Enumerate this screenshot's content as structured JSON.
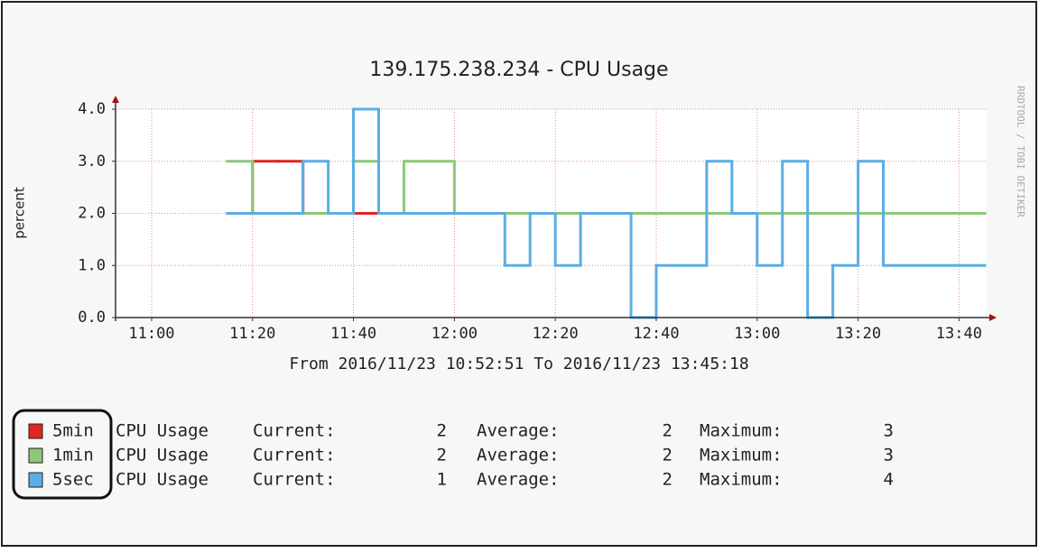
{
  "chart_data": {
    "type": "step",
    "title": "139.175.238.234 - CPU Usage",
    "y_label": "percent",
    "x_label": "From 2016/11/23 10:52:51 To 2016/11/23 13:45:18",
    "watermark": "RRDTOOL / TOBI OETIKER",
    "xlim": [
      "10:52:51",
      "13:45:18"
    ],
    "xticks": [
      "11:00",
      "11:20",
      "11:40",
      "12:00",
      "12:20",
      "12:40",
      "13:00",
      "13:20",
      "13:40"
    ],
    "ylim": [
      0,
      4
    ],
    "yticks": [
      {
        "value": 0,
        "label": "0.0"
      },
      {
        "value": 1,
        "label": "1.0"
      },
      {
        "value": 2,
        "label": "2.0"
      },
      {
        "value": 3,
        "label": "3.0"
      },
      {
        "value": 4,
        "label": "4.0"
      }
    ],
    "grid": true,
    "x": [
      "11:15",
      "11:20",
      "11:25",
      "11:30",
      "11:35",
      "11:40",
      "11:45",
      "11:50",
      "11:55",
      "12:00",
      "12:05",
      "12:10",
      "12:15",
      "12:20",
      "12:25",
      "12:30",
      "12:35",
      "12:40",
      "12:45",
      "12:50",
      "12:55",
      "13:00",
      "13:05",
      "13:10",
      "13:15",
      "13:20",
      "13:25",
      "13:30",
      "13:35",
      "13:40",
      "13:45"
    ],
    "legend_labels": {
      "description": "CPU Usage",
      "current": "Current:",
      "average": "Average:",
      "maximum": "Maximum:"
    },
    "series": [
      {
        "name": "5min",
        "color": "#e02424",
        "current": 2,
        "average": 2,
        "maximum": 3,
        "values": [
          2,
          3,
          3,
          2,
          2,
          2,
          2,
          2,
          2,
          2,
          2,
          2,
          2,
          2,
          2,
          2,
          2,
          2,
          2,
          2,
          2,
          2,
          2,
          2,
          2,
          2,
          2,
          2,
          2,
          2,
          2
        ]
      },
      {
        "name": "1min",
        "color": "#8cc878",
        "current": 2,
        "average": 2,
        "maximum": 3,
        "values": [
          3,
          2,
          2,
          2,
          2,
          3,
          2,
          3,
          3,
          2,
          2,
          2,
          2,
          2,
          2,
          2,
          2,
          2,
          2,
          2,
          2,
          2,
          2,
          2,
          2,
          2,
          2,
          2,
          2,
          2,
          2
        ]
      },
      {
        "name": "5sec",
        "color": "#5aaee4",
        "current": 1,
        "average": 2,
        "maximum": 4,
        "values": [
          2,
          2,
          2,
          3,
          2,
          4,
          2,
          2,
          2,
          2,
          2,
          1,
          2,
          1,
          2,
          2,
          0,
          1,
          1,
          3,
          2,
          1,
          3,
          0,
          1,
          3,
          1,
          1,
          1,
          1,
          1
        ]
      }
    ]
  }
}
